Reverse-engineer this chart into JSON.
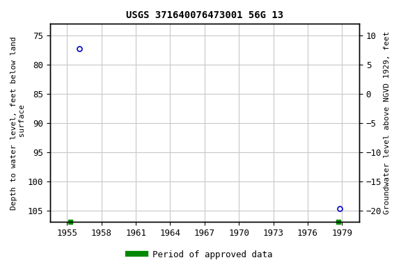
{
  "title": "USGS 371640076473001 56G 13",
  "ylabel_left": "Depth to water level, feet below land\n surface",
  "ylabel_right": "Groundwater level above NGVD 1929, feet",
  "background_color": "#ffffff",
  "plot_bg_color": "#ffffff",
  "grid_color": "#c8c8c8",
  "data_points": [
    {
      "x": 1956.1,
      "y_left": 77.3
    },
    {
      "x": 1978.8,
      "y_left": 104.7
    }
  ],
  "green_ticks": [
    {
      "x": 1955.3
    },
    {
      "x": 1978.7
    }
  ],
  "xlim": [
    1953.5,
    1980.5
  ],
  "ylim_left": [
    107.0,
    73.0
  ],
  "ylim_right_top": 10,
  "ylim_right_bottom": -20,
  "xticks": [
    1955,
    1958,
    1961,
    1964,
    1967,
    1970,
    1973,
    1976,
    1979
  ],
  "yticks_left": [
    75,
    80,
    85,
    90,
    95,
    100,
    105
  ],
  "yticks_right": [
    10,
    5,
    0,
    -5,
    -10,
    -15,
    -20
  ],
  "point_color": "#0000cc",
  "point_marker": "o",
  "point_facecolor": "none",
  "point_size": 5,
  "green_marker_color": "#008800",
  "legend_label": "Period of approved data",
  "title_fontsize": 10,
  "axis_label_fontsize": 8,
  "tick_fontsize": 9
}
